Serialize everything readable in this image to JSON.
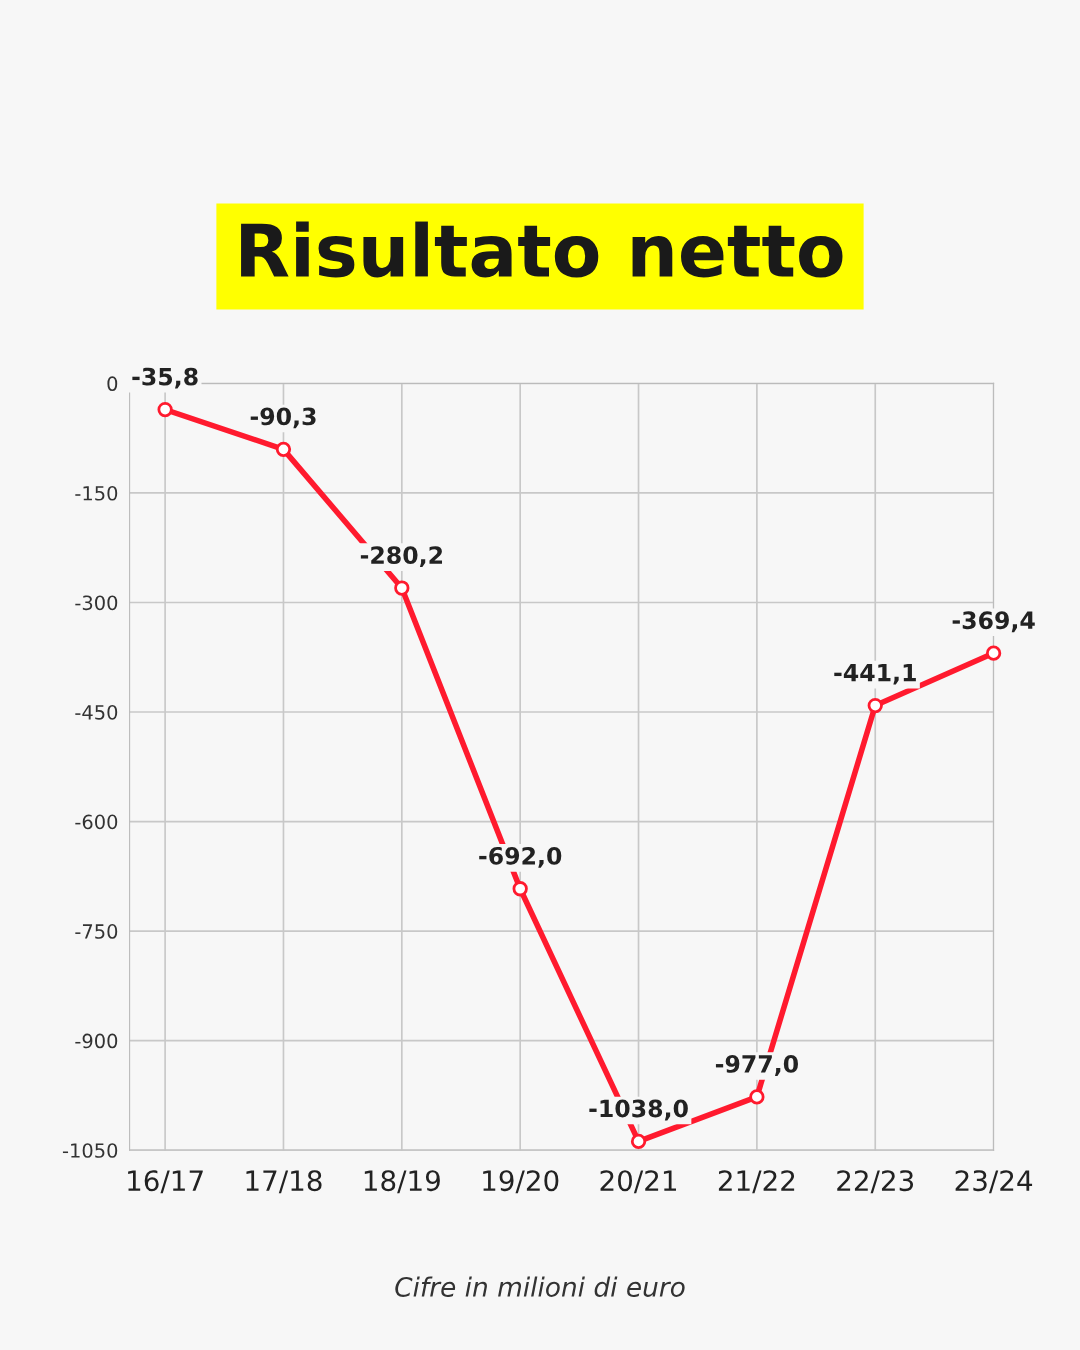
{
  "chart_data": {
    "type": "line",
    "title": "Risultato netto",
    "categories": [
      "16/17",
      "17/18",
      "18/19",
      "19/20",
      "20/21",
      "21/22",
      "22/23",
      "23/24"
    ],
    "series": [
      {
        "color": "#ff1a2e",
        "values": [
          -35.8,
          -90.3,
          -280.2,
          -692.0,
          -1038.0,
          -977.0,
          -441.1,
          -369.4
        ],
        "value_labels": [
          "-35,8",
          "-90,3",
          "-280,2",
          "-692,0",
          "-1038,0",
          "-977,0",
          "-441,1",
          "-369,4"
        ]
      }
    ],
    "ylim": [
      -1050,
      0
    ],
    "yticks": [
      0,
      -150,
      -300,
      -450,
      -600,
      -750,
      -900,
      -1050
    ],
    "grid": true,
    "marker": "circle",
    "line_style": "solid",
    "annotations": [
      "Cifre in milioni di euro"
    ]
  }
}
